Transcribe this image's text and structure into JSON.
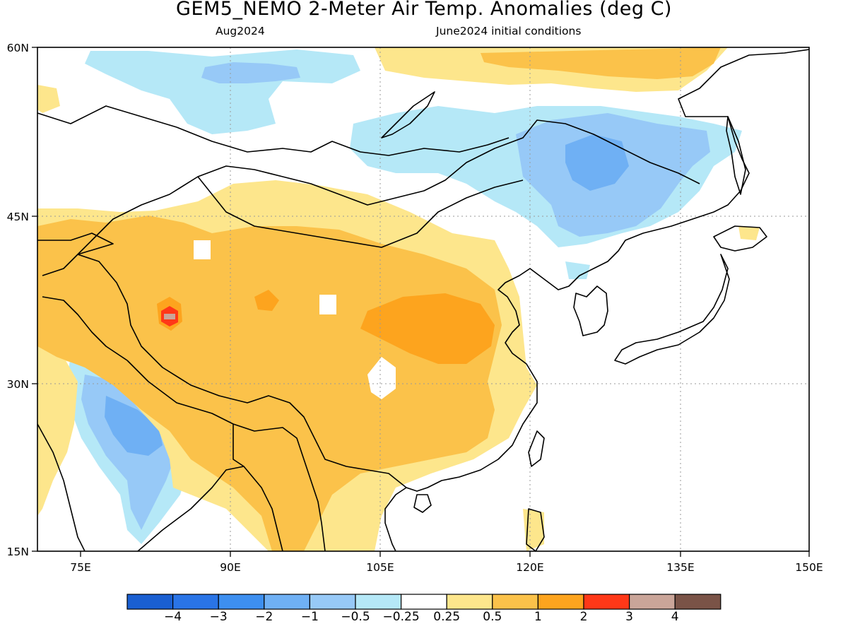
{
  "title": "GEM5_NEMO 2-Meter Air Temp. Anomalies (deg C)",
  "subtitle_left": "Aug2024",
  "subtitle_right": "June2024 initial conditions",
  "axes": {
    "lon_labels": [
      "75E",
      "90E",
      "105E",
      "120E",
      "135E",
      "150E"
    ],
    "lat_labels": [
      "15N",
      "30N",
      "45N",
      "60N"
    ]
  },
  "colorbar": {
    "labels": [
      "−4",
      "−3",
      "−2",
      "−1",
      "−0.5",
      "−0.25",
      "0.25",
      "0.5",
      "1",
      "2",
      "3",
      "4"
    ],
    "colors": [
      "#1a5fd1",
      "#2a74e6",
      "#3d8ff0",
      "#6fb0f4",
      "#97c9f7",
      "#b5e8f7",
      "#ffffff",
      "#fde68c",
      "#fbc24a",
      "#fda41e",
      "#ff3818",
      "#caa599",
      "#7a5347"
    ]
  },
  "legend_note": "",
  "palette": {
    "neg_light": "#b5e8f7",
    "neg_mid": "#97c9f7",
    "neg_strong": "#6fb0f4",
    "pos_light": "#fde68c",
    "pos_mid": "#fbc24a",
    "pos_strong": "#fda41e",
    "pos_extreme": "#ff3818",
    "pos_max": "#caa599"
  }
}
